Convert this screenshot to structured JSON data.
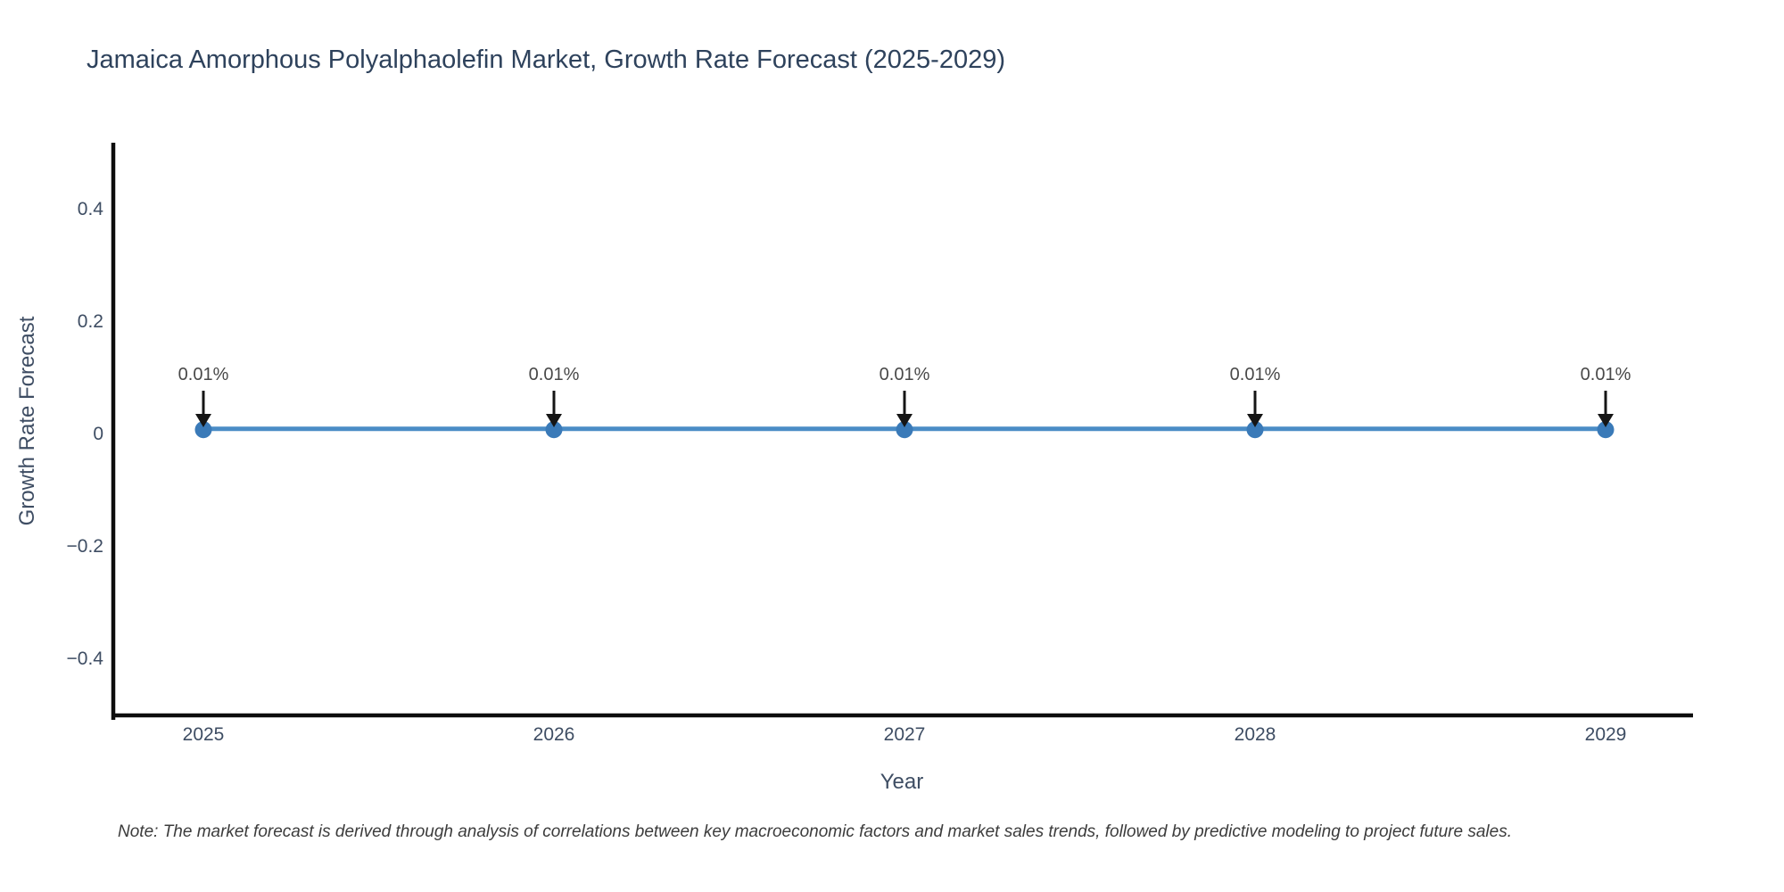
{
  "chart": {
    "title": "Jamaica Amorphous Polyalphaolefin Market, Growth Rate Forecast (2025-2029)",
    "xlabel": "Year",
    "ylabel": "Growth Rate Forecast"
  },
  "note": "Note: The market forecast is derived through analysis of correlations between key macroeconomic factors and market sales trends, followed by predictive modeling to project future sales.",
  "chart_data": {
    "type": "line",
    "title": "Jamaica Amorphous Polyalphaolefin Market, Growth Rate Forecast (2025-2029)",
    "xlabel": "Year",
    "ylabel": "Growth Rate Forecast",
    "x": [
      2025,
      2026,
      2027,
      2028,
      2029
    ],
    "x_labels": [
      "2025",
      "2026",
      "2027",
      "2028",
      "2029"
    ],
    "series": [
      {
        "name": "Growth Rate Forecast",
        "values": [
          0.01,
          0.01,
          0.01,
          0.01,
          0.01
        ]
      }
    ],
    "point_annotations": [
      "0.01%",
      "0.01%",
      "0.01%",
      "0.01%",
      "0.01%"
    ],
    "yticks": [
      0.4,
      0.2,
      0,
      -0.2,
      -0.4
    ],
    "ytick_labels": [
      "0.4",
      "0.2",
      "0",
      "−0.2",
      "−0.4"
    ],
    "ylim": [
      -0.5,
      0.52
    ],
    "grid": false,
    "legend": "none",
    "colors": {
      "line": "#4a8cc6",
      "marker": "#3a7ab8",
      "arrow": "#151515",
      "axis": "#0d0d0d"
    }
  }
}
